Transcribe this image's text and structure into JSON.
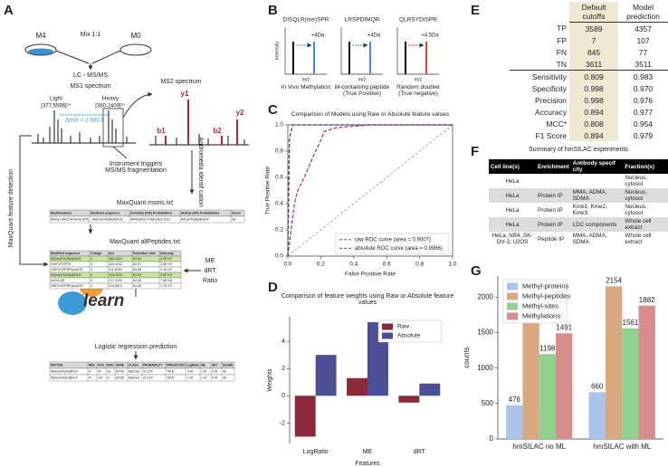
{
  "panels": [
    "A",
    "B",
    "C",
    "D",
    "E",
    "F",
    "G"
  ],
  "panel_a": {
    "sample_heavy": "M4",
    "sample_light": "M0",
    "mix": "Mix 1:1",
    "lcms": "LC - MS/MS",
    "ms1": "MS1 spectrum",
    "light": "Light",
    "light_mz": "[377.5596]³⁺",
    "heavy": "Heavy",
    "heavy_mz": "[380.2409]³⁺",
    "delta": "Δm/z = 2.6813",
    "ms2": "MS2 spectrum",
    "ions": [
      "b1",
      "y1",
      "b2",
      "y2"
    ],
    "trigger": "Instrument triggers MS/MS fragmentation",
    "andromeda": "Andromeda identif cation",
    "feature_detection": "MaxQuant feature detection",
    "msms_table": {
      "title": "MaxQuant msms.txt",
      "header": [
        "Modifications",
        "Modified sequence",
        "Dimethyl (KR) Probabilities",
        "Methyl (KR) Probabilities",
        "Score"
      ],
      "rows": [
        [
          "Methyl (KR),Dimethyl (KR)",
          "_IM(me)FAQR(di)NLR_",
          "IMFAQR(0.978)NLR(0.022)",
          "IM(1)FAQR(di)NLR",
          "98"
        ]
      ]
    },
    "peptides_table": {
      "title": "MaxQuant allPeptides.txt",
      "header": [
        "Modified sequence",
        "Charge",
        "m/z",
        "Retention time",
        "Intensity"
      ],
      "rows": [
        [
          "IM(me)FAQR(di)NLR",
          "3",
          "380.2433",
          "63.99",
          "2.2E+07"
        ],
        [
          "HIHFVTHPTK",
          "3",
          "320.4242",
          "62.91",
          "3.5E+07"
        ],
        [
          "GRPVGFPRR(me)GR",
          "4",
          "311.6764",
          "64.58",
          "2.1E+07"
        ],
        [
          "IM(me)FAQR(di)NLR",
          "3",
          "315.2023",
          "63.94",
          "2.6E+07"
        ],
        [
          "KIHVLAR",
          "3",
          "217.2100",
          "64.28",
          "7.6E+06"
        ],
        [
          "GRPVGFPRR(me)GR",
          "4",
          "313.6874",
          "64.58",
          "1.7E+07"
        ]
      ]
    },
    "features": [
      "ME",
      "dRT",
      "Ratio"
    ],
    "logo_small": "scikit",
    "logo": "learn",
    "regression": "Logistic regression prediction",
    "prediction_table": {
      "header": [
        "PEPTIDE",
        "RES",
        "POS",
        "MOD",
        "GENE",
        "CLASS",
        "PROBABILITY",
        "PREDICTION",
        "LogRatio",
        "ME",
        "dRT",
        "SCORE"
      ],
      "rows": [
        [
          "IM(me)FAQR(di)NLR",
          "R",
          "99",
          "me",
          "EIF5D",
          "Matched",
          "91.31%",
          "TRUE",
          "-0.46",
          "1.04",
          "0.06",
          "98"
        ],
        [
          "IM(me)FAQR(di)NLR",
          "R",
          "103",
          "di",
          "EIF5D",
          "Matched",
          "91.31%",
          "TRUE",
          "-0.46",
          "1.04",
          "0.06",
          "98"
        ]
      ]
    }
  },
  "panel_b": {
    "ylabel": "Intensity",
    "examples": [
      {
        "peptide": "DISQLR(me)SPR",
        "shift": "+4Da",
        "xlabel": "m/z",
        "caption": "In Vivo Methylation",
        "color": "#3d8fd6"
      },
      {
        "peptide": "LRSPDIMQR",
        "shift": "+4Da",
        "xlabel": "m/z",
        "caption": "M-containing peptide (True Positive)",
        "color": "#3d8fd6"
      },
      {
        "peptide": "QLRSYDISPR",
        "shift": "+4.5Da",
        "xlabel": "m/z",
        "caption": "Random doublet (True negative)",
        "color": "#e0463a"
      }
    ]
  },
  "chart_data": [
    {
      "type": "line",
      "title": "Comparison of Models using Raw or Absolute feature values",
      "xlabel": "False Positive Rate",
      "ylabel": "True Positive Rate",
      "xlim": [
        0,
        1
      ],
      "ylim": [
        0,
        1
      ],
      "xticks": [
        {
          "value": 0,
          "label": "0.0"
        },
        {
          "value": 0.2,
          "label": "0.2"
        },
        {
          "value": 0.4,
          "label": "0.4"
        },
        {
          "value": 0.6,
          "label": "0.6"
        },
        {
          "value": 0.8,
          "label": "0.8"
        },
        {
          "value": 1,
          "label": "1.0"
        }
      ],
      "yticks": [
        {
          "value": 0,
          "label": "0.0"
        },
        {
          "value": 0.2,
          "label": "0.2"
        },
        {
          "value": 0.4,
          "label": "0.4"
        },
        {
          "value": 0.6,
          "label": "0.6"
        },
        {
          "value": 0.8,
          "label": "0.8"
        },
        {
          "value": 1,
          "label": "1.0"
        }
      ],
      "reference_line": true,
      "legend": "lower right",
      "series": [
        {
          "name": "raw ROC curve (area = 0.9007)",
          "color": "#c0394b",
          "linestyle": "dashed",
          "x": [
            0,
            0.02,
            0.04,
            0.06,
            0.1,
            0.15,
            0.2,
            0.22,
            0.3,
            0.5,
            1
          ],
          "values": [
            0,
            0.2,
            0.4,
            0.5,
            0.6,
            0.75,
            0.88,
            0.95,
            0.98,
            1,
            1
          ]
        },
        {
          "name": "absolute ROC curve (area = 0.9966)",
          "color": "#3f3f8f",
          "linestyle": "dashed",
          "x": [
            0,
            0.01,
            0.03,
            1
          ],
          "values": [
            0,
            0.9,
            1,
            1
          ]
        }
      ]
    },
    {
      "type": "bar",
      "title": "Comparison of feature weights using Raw or Absolute feature values",
      "xlabel": "Features",
      "ylabel": "Weights",
      "categories": [
        "LogRatio",
        "ME",
        "dRT"
      ],
      "ylim": [
        -3.5,
        5.8
      ],
      "yticks": [
        4,
        2,
        0,
        -2
      ],
      "legend": "upper right",
      "series": [
        {
          "name": "Raw",
          "color": "#8c2a3c",
          "values": [
            -3.0,
            1.3,
            -0.5
          ]
        },
        {
          "name": "Absolute",
          "color": "#4b4f96",
          "values": [
            3.0,
            5.4,
            0.9
          ]
        }
      ]
    },
    {
      "type": "bar",
      "ylabel": "counts",
      "categories": [
        "hmSILAC no ML",
        "hmSILAC with ML"
      ],
      "ylim": [
        0,
        2300
      ],
      "yticks": [
        0,
        500,
        1000,
        1500,
        2000
      ],
      "legend": "upper left",
      "data_labels": true,
      "series": [
        {
          "name": "Methyl-proteins",
          "color": "#a9c4e8",
          "values": [
            476,
            660
          ]
        },
        {
          "name": "Methyl-peptides",
          "color": "#d9a87e",
          "values": [
            1724,
            2154
          ]
        },
        {
          "name": "Methyl-sites",
          "color": "#8fd18f",
          "values": [
            1198,
            1561
          ]
        },
        {
          "name": "Methylations",
          "color": "#d98c8c",
          "values": [
            1491,
            1882
          ]
        }
      ]
    }
  ],
  "table_e": {
    "header": [
      "Default cutoffs",
      "Model prediction"
    ],
    "rows": [
      [
        "TP",
        "3589",
        "4357"
      ],
      [
        "FP",
        "7",
        "107"
      ],
      [
        "FN",
        "845",
        "77"
      ],
      [
        "TN",
        "3611",
        "3511"
      ],
      [
        "Sensitivity",
        "0.809",
        "0.983"
      ],
      [
        "Specificity",
        "0.998",
        "0.970"
      ],
      [
        "Precision",
        "0.998",
        "0.976"
      ],
      [
        "Accuracy",
        "0.894",
        "0.977"
      ],
      [
        "MCC*",
        "0.808",
        "0.954"
      ],
      [
        "F1 Score",
        "0.894",
        "0.979"
      ]
    ]
  },
  "table_f": {
    "title": "Summary of hmSILAC experiments",
    "header": [
      "Cell line(s)",
      "Enrichment",
      "Antibody specif city",
      "Fraction(s)"
    ],
    "rows": [
      [
        "HeLa",
        null,
        null,
        "Nucleus, cytosol"
      ],
      [
        "HeLa",
        "Protein IP",
        "MMA, ADMA, SDMA",
        "Nucleus, cytosol"
      ],
      [
        "HeLa",
        "Protein IP",
        "Kme1, Kme2, Kme3",
        "Nucleus, cytosol"
      ],
      [
        "HeLa",
        "Protein IP",
        "LDC components",
        "Whole cell extract"
      ],
      [
        "HeLa, NB4, SK-OV-3, U2OS",
        "Peptide IP",
        "MMA, ADMA, SDMA",
        "Whole cell extract"
      ]
    ]
  }
}
